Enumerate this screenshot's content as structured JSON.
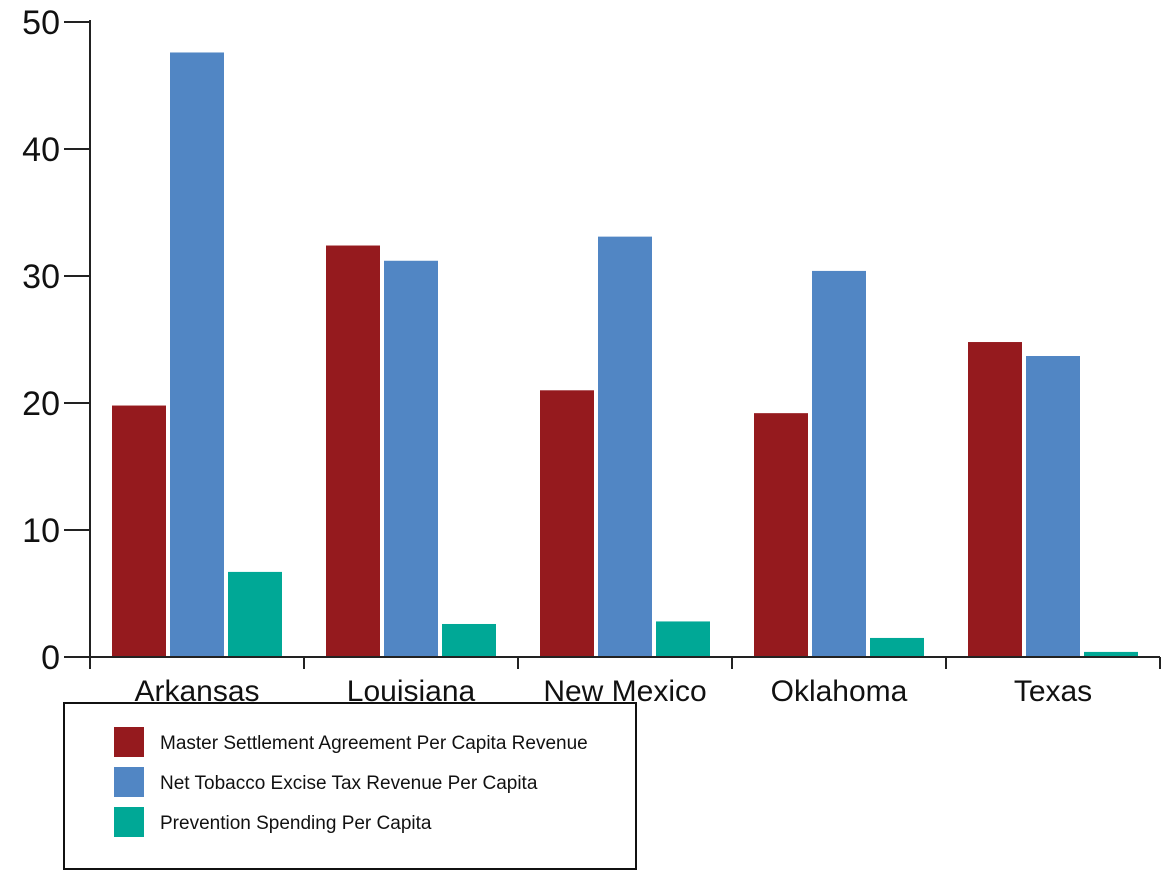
{
  "colors": {
    "master_settlement": "#951a1e",
    "excise_tax": "#5186c4",
    "prevention": "#00a896",
    "axis": "#222222",
    "background": "#ffffff"
  },
  "chart_data": {
    "type": "bar",
    "categories": [
      "Arkansas",
      "Louisiana",
      "New Mexico",
      "Oklahoma",
      "Texas"
    ],
    "series": [
      {
        "name": "Master Settlement Agreement Per Capita Revenue",
        "color": "#951a1e",
        "values": [
          19.8,
          32.4,
          21.0,
          19.2,
          24.8
        ]
      },
      {
        "name": "Net Tobacco Excise Tax Revenue Per Capita",
        "color": "#5186c4",
        "values": [
          47.6,
          31.2,
          33.1,
          30.4,
          23.7
        ]
      },
      {
        "name": "Prevention Spending Per Capita",
        "color": "#00a896",
        "values": [
          6.7,
          2.6,
          2.8,
          1.5,
          0.4
        ]
      }
    ],
    "ylim": [
      0,
      50
    ],
    "yticks": [
      "0",
      "10",
      "20",
      "30",
      "40",
      "50"
    ],
    "grid": false,
    "legend_position": "bottom-left"
  }
}
